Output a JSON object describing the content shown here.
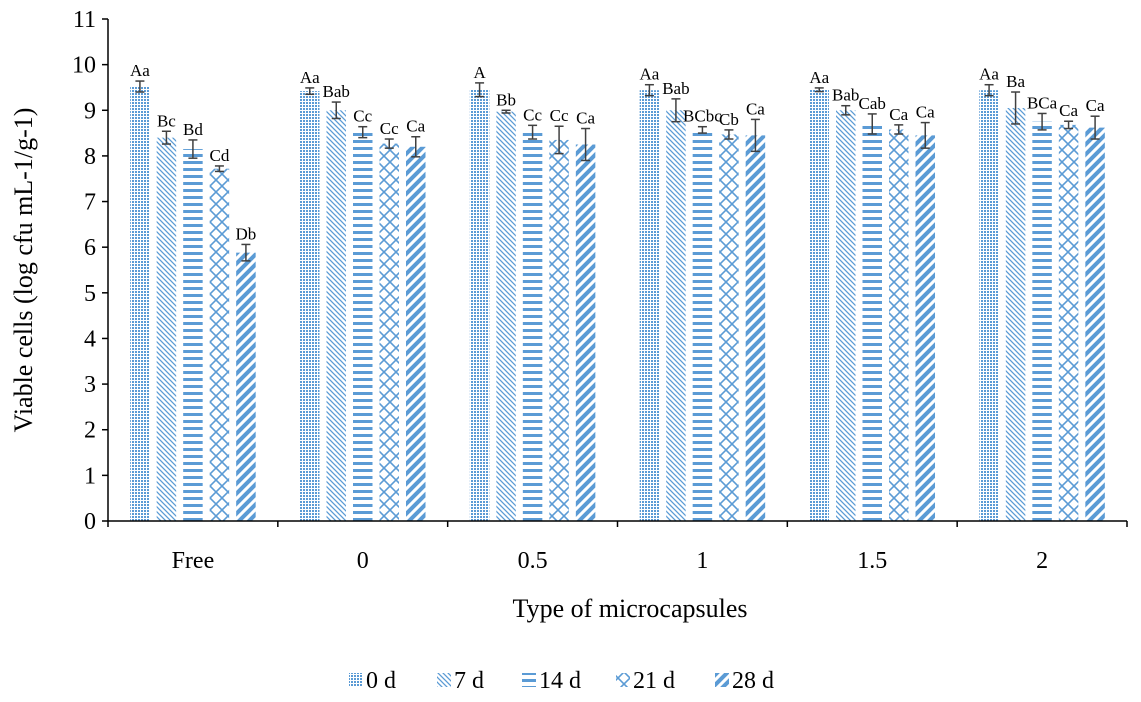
{
  "chart_data": {
    "type": "bar",
    "title": "",
    "xlabel": "Type of microcapsules",
    "ylabel": "Viable cells (log cfu mL-1/g-1)",
    "ylim": [
      0,
      11
    ],
    "yticks": [
      "0",
      "1",
      "2",
      "3",
      "4",
      "5",
      "6",
      "7",
      "8",
      "9",
      "10",
      "11"
    ],
    "categories": [
      "Free",
      "0",
      "0.5",
      "1",
      "1.5",
      "2"
    ],
    "legend_position": "bottom",
    "grid": false,
    "series": [
      {
        "name": "0 d",
        "pattern": "dots",
        "values": [
          9.52,
          9.42,
          9.45,
          9.44,
          9.45,
          9.44
        ],
        "errors": [
          0.12,
          0.07,
          0.15,
          0.12,
          0.04,
          0.12
        ],
        "labels": [
          "Aa",
          "Aa",
          "A",
          "Aa",
          "Aa",
          "Aa"
        ]
      },
      {
        "name": "7 d",
        "pattern": "diagonal-down",
        "values": [
          8.4,
          9.0,
          8.97,
          9.0,
          9.0,
          9.05
        ],
        "errors": [
          0.14,
          0.18,
          0.03,
          0.25,
          0.1,
          0.35
        ],
        "labels": [
          "Bc",
          "Bab",
          "Bb",
          "Bab",
          "Bab",
          "Ba"
        ]
      },
      {
        "name": "14 d",
        "pattern": "horizontal",
        "values": [
          8.15,
          8.52,
          8.52,
          8.57,
          8.7,
          8.75
        ],
        "errors": [
          0.2,
          0.12,
          0.15,
          0.07,
          0.22,
          0.18
        ],
        "labels": [
          "Bd",
          "Cc",
          "Cc",
          "BCbc",
          "Cab",
          "BCa"
        ]
      },
      {
        "name": "21 d",
        "pattern": "lattice",
        "values": [
          7.72,
          8.27,
          8.35,
          8.47,
          8.58,
          8.68
        ],
        "errors": [
          0.06,
          0.1,
          0.3,
          0.1,
          0.1,
          0.08
        ],
        "labels": [
          "Cd",
          "Cc",
          "Cc",
          "Cb",
          "Ca",
          "Ca"
        ]
      },
      {
        "name": "28 d",
        "pattern": "diagonal-wide",
        "values": [
          5.88,
          8.2,
          8.25,
          8.45,
          8.45,
          8.62
        ],
        "errors": [
          0.18,
          0.22,
          0.35,
          0.35,
          0.28,
          0.25
        ],
        "labels": [
          "Db",
          "Ca",
          "Ca",
          "Ca",
          "Ca",
          "Ca"
        ]
      }
    ],
    "colors": {
      "bar": "#5b9bd5",
      "axis": "#000000",
      "error": "#404040",
      "background": "#ffffff"
    }
  }
}
